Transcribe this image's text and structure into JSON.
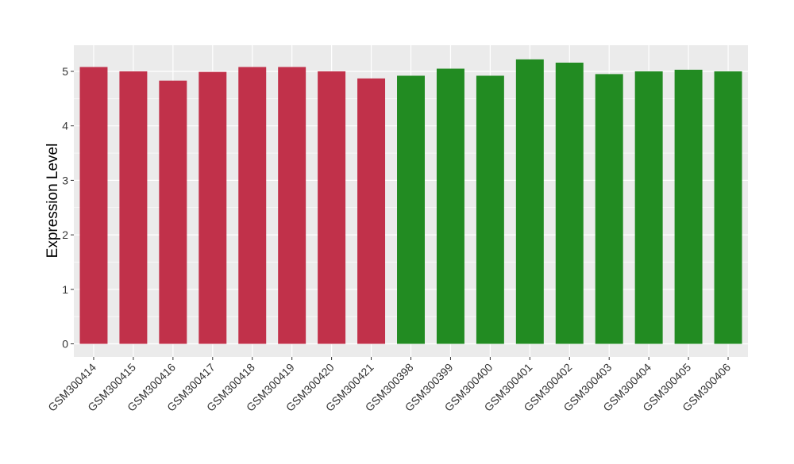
{
  "chart_data": {
    "type": "bar",
    "title": "",
    "xlabel": "",
    "ylabel": "Expression Level",
    "ylim": [
      -0.24,
      5.48
    ],
    "yticks": [
      0,
      1,
      2,
      3,
      4,
      5
    ],
    "grid": true,
    "categories": [
      "GSM300414",
      "GSM300415",
      "GSM300416",
      "GSM300417",
      "GSM300418",
      "GSM300419",
      "GSM300420",
      "GSM300421",
      "GSM300398",
      "GSM300399",
      "GSM300400",
      "GSM300401",
      "GSM300402",
      "GSM300403",
      "GSM300404",
      "GSM300405",
      "GSM300406"
    ],
    "values": [
      5.08,
      5.0,
      4.83,
      4.99,
      5.08,
      5.08,
      5.0,
      4.87,
      4.92,
      5.05,
      4.92,
      5.22,
      5.16,
      4.95,
      5.0,
      5.03,
      5.0
    ],
    "bar_colors": [
      "#c1314a",
      "#c1314a",
      "#c1314a",
      "#c1314a",
      "#c1314a",
      "#c1314a",
      "#c1314a",
      "#c1314a",
      "#228b22",
      "#228b22",
      "#228b22",
      "#228b22",
      "#228b22",
      "#228b22",
      "#228b22",
      "#228b22",
      "#228b22"
    ],
    "panel_background": "#ebebeb"
  }
}
